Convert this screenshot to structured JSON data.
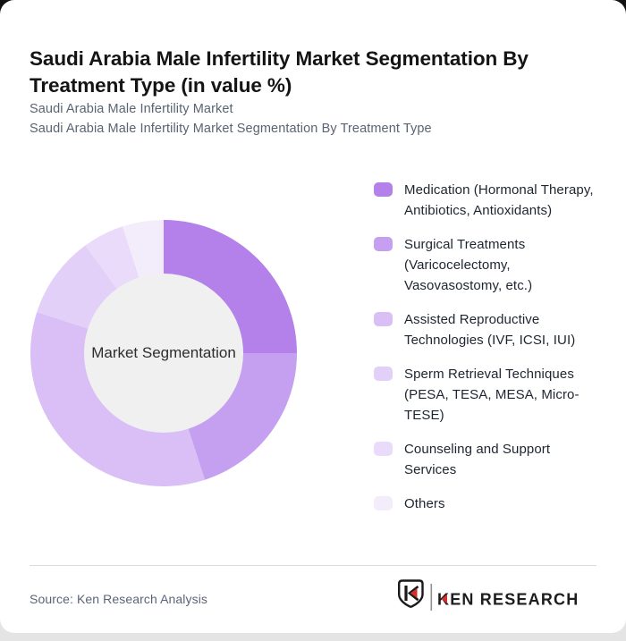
{
  "page": {
    "title": "Saudi Arabia Male Infertility Market Segmentation By Treatment Type (in value %)",
    "subtitle_line1": "Saudi Arabia Male Infertility Market",
    "subtitle_line2": "Saudi Arabia Male Infertility Market Segmentation By Treatment Type",
    "source": "Source: Ken Research Analysis",
    "logo_text": "KEN RESEARCH"
  },
  "chart_data": {
    "type": "pie",
    "variant": "donut",
    "title": "Saudi Arabia Male Infertility Market Segmentation By Treatment Type (in value %)",
    "center_label": "Market Segmentation",
    "unit": "value %",
    "legend_position": "right",
    "direction": "clockwise",
    "start_angle_deg": -90,
    "categories": [
      "Medication (Hormonal Therapy, Antibiotics, Antioxidants)",
      "Surgical Treatments (Varicocelectomy, Vasovasostomy, etc.)",
      "Assisted Reproductive Technologies (IVF, ICSI, IUI)",
      "Sperm Retrieval Techniques (PESA, TESA, MESA, Micro-TESE)",
      "Counseling and Support Services",
      "Others"
    ],
    "values": [
      25,
      20,
      35,
      10,
      5,
      5
    ],
    "colors": [
      "#b480e9",
      "#c59ff0",
      "#d9bff6",
      "#e3d0f8",
      "#e9dbf9",
      "#f3edfb"
    ],
    "inner_circle_color": "#f0f0f1",
    "accent_red": "#d0312d",
    "logo_dark": "#1d1d1d"
  }
}
